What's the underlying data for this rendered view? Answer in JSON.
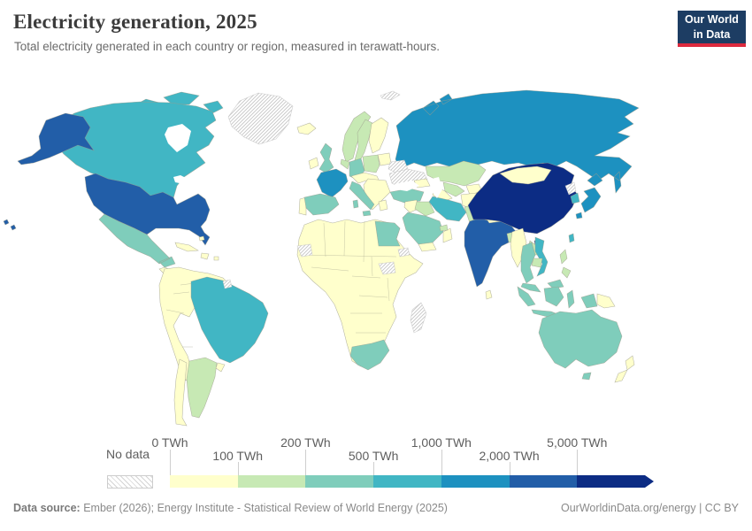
{
  "header": {
    "title": "Electricity generation, 2025",
    "subtitle": "Total electricity generated in each country or region, measured in terawatt-hours."
  },
  "logo": {
    "line1": "Our World",
    "line2": "in Data",
    "bg_color": "#1d3d63",
    "accent_color": "#dc2a3e"
  },
  "legend": {
    "no_data_label": "No data",
    "unit": "TWh",
    "ticks": [
      "0 TWh",
      "100 TWh",
      "200 TWh",
      "500 TWh",
      "1,000 TWh",
      "2,000 TWh",
      "5,000 TWh"
    ],
    "colors": [
      "#ffffcc",
      "#c7e9b4",
      "#7fcdbb",
      "#41b6c4",
      "#1d91c0",
      "#225ea8",
      "#0c2c84"
    ],
    "tick_color": "#cfcfcf"
  },
  "footer": {
    "source_label": "Data source:",
    "source_text": " Ember (2026); Energy Institute - Statistical Review of World Energy (2025)",
    "right_text": "OurWorldinData.org/energy | CC BY"
  },
  "chart_data": {
    "type": "choropleth",
    "title": "Electricity generation, 2025",
    "subtitle": "Total electricity generated in each country or region, measured in terawatt-hours.",
    "unit": "TWh",
    "scale_type": "threshold",
    "bins": [
      {
        "label": "0-100 TWh",
        "color": "#ffffcc"
      },
      {
        "label": "100-200 TWh",
        "color": "#c7e9b4"
      },
      {
        "label": "200-500 TWh",
        "color": "#7fcdbb"
      },
      {
        "label": "500-1,000 TWh",
        "color": "#41b6c4"
      },
      {
        "label": "1,000-2,000 TWh",
        "color": "#1d91c0"
      },
      {
        "label": "2,000-5,000 TWh",
        "color": "#225ea8"
      },
      {
        "label": "5,000+ TWh",
        "color": "#0c2c84"
      }
    ],
    "no_data": {
      "label": "No data",
      "style": "hatched"
    },
    "countries": {
      "United States": "2,000-5,000 TWh",
      "Canada": "500-1,000 TWh",
      "Greenland": "No data",
      "Mexico": "200-500 TWh",
      "Central America": "0-100 TWh",
      "Cuba": "0-100 TWh",
      "Caribbean": "0-100 TWh",
      "Colombia": "0-100 TWh",
      "Venezuela": "0-100 TWh",
      "Peru": "0-100 TWh",
      "Bolivia": "0-100 TWh",
      "Paraguay": "0-100 TWh",
      "Uruguay": "0-100 TWh",
      "Chile": "0-100 TWh",
      "Argentina": "100-200 TWh",
      "Brazil": "500-1,000 TWh",
      "French Guiana": "No data",
      "Iceland": "0-100 TWh",
      "Ireland": "0-100 TWh",
      "United Kingdom": "200-500 TWh",
      "Portugal": "0-100 TWh",
      "Spain": "200-500 TWh",
      "France": "1,000-2,000 TWh",
      "Belgium & Netherlands": "100-200 TWh",
      "Germany": "200-500 TWh",
      "Denmark": "0-100 TWh",
      "Norway": "100-200 TWh",
      "Sweden": "100-200 TWh",
      "Finland": "0-100 TWh",
      "Poland": "100-200 TWh",
      "Central Europe": "0-100 TWh",
      "Italy": "200-500 TWh",
      "Balkans": "0-100 TWh",
      "Greece": "0-100 TWh",
      "Baltic states": "0-100 TWh",
      "Belarus": "No data",
      "Ukraine": "No data",
      "Russia": "1,000-2,000 TWh",
      "Svalbard": "No data",
      "Turkey": "200-500 TWh",
      "Caucasus": "0-100 TWh",
      "Kazakhstan": "100-200 TWh",
      "Uzbekistan": "100-200 TWh",
      "Turkmenistan": "0-100 TWh",
      "Iran": "500-1,000 TWh",
      "Iraq": "100-200 TWh",
      "Syria & Levant": "0-100 TWh",
      "Saudi Arabia": "200-500 TWh",
      "Yemen": "0-100 TWh",
      "Oman": "0-100 TWh",
      "United Arab Emirates": "100-200 TWh",
      "Afghanistan": "0-100 TWh",
      "Pakistan": "100-200 TWh",
      "India": "2,000-5,000 TWh",
      "Sri Lanka": "0-100 TWh",
      "Bangladesh": "100-200 TWh",
      "Nepal": "0-100 TWh",
      "China": "5,000+ TWh",
      "Mongolia": "0-100 TWh",
      "North Korea": "No data",
      "South Korea": "500-1,000 TWh",
      "Japan": "1,000-2,000 TWh",
      "Taiwan": "500-1,000 TWh",
      "Myanmar": "0-100 TWh",
      "Thailand": "200-500 TWh",
      "Laos": "100-200 TWh",
      "Cambodia": "100-200 TWh",
      "Vietnam": "500-1,000 TWh",
      "Malaysia": "200-500 TWh",
      "Philippines": "100-200 TWh",
      "Indonesia": "200-500 TWh",
      "Papua New Guinea": "0-100 TWh",
      "Australia": "200-500 TWh",
      "New Zealand": "0-100 TWh",
      "Egypt": "200-500 TWh",
      "South Africa": "200-500 TWh",
      "Madagascar": "No data",
      "Western Sahara": "No data",
      "South Sudan": "No data",
      "Eritrea": "No data",
      "Rest of Africa": "0-100 TWh"
    }
  },
  "map": {
    "regions": {
      "greenland": -1,
      "canada-islands": 3,
      "canada": 3,
      "alaska": 5,
      "usa": 5,
      "hawaii": 5,
      "mexico": 2,
      "central-america": 0,
      "caribbean": 0,
      "sa-west": 0,
      "brazil": 3,
      "argentina": 1,
      "chile": 0,
      "uruguay": 0,
      "french-guiana": -1,
      "iceland": 0,
      "ireland": 0,
      "uk": 2,
      "norway": 1,
      "sweden": 1,
      "finland": 0,
      "denmark": 0,
      "baltics": 0,
      "belarus": -1,
      "ukraine": -1,
      "poland": 1,
      "germany": 2,
      "benelux": 1,
      "france": 4,
      "spain": 2,
      "portugal": 0,
      "italy": 2,
      "central-europe": 0,
      "balkans": 0,
      "greece": 0,
      "russia": 4,
      "svalbard": -1,
      "kazakhstan": 1,
      "uzbekistan": 1,
      "turkmenistan": 0,
      "kyrgyzstan-tajikistan": 0,
      "caucasus": 0,
      "turkey": 2,
      "syria-levant": 0,
      "iraq": 1,
      "iran": 3,
      "saudi-arabia": 2,
      "yemen": 0,
      "oman": 0,
      "uae-qatar": 1,
      "afghanistan": 0,
      "pakistan": 1,
      "india": 5,
      "sri-lanka": 0,
      "bangladesh": 1,
      "nepal": 0,
      "china": 6,
      "mongolia": 0,
      "taiwan": 3,
      "north-korea": -1,
      "south-korea": 3,
      "japan": 4,
      "myanmar": 0,
      "thailand": 2,
      "laos": 1,
      "cambodia": 1,
      "vietnam": 3,
      "malaysia": 2,
      "indonesia": 2,
      "papua-new-guinea": 0,
      "philippines": 1,
      "australia": 2,
      "new-zealand": 0,
      "africa": 0,
      "egypt": 2,
      "western-sahara": -1,
      "south-sudan": -1,
      "eritrea": -1,
      "madagascar": -1,
      "south-africa": 2
    }
  }
}
